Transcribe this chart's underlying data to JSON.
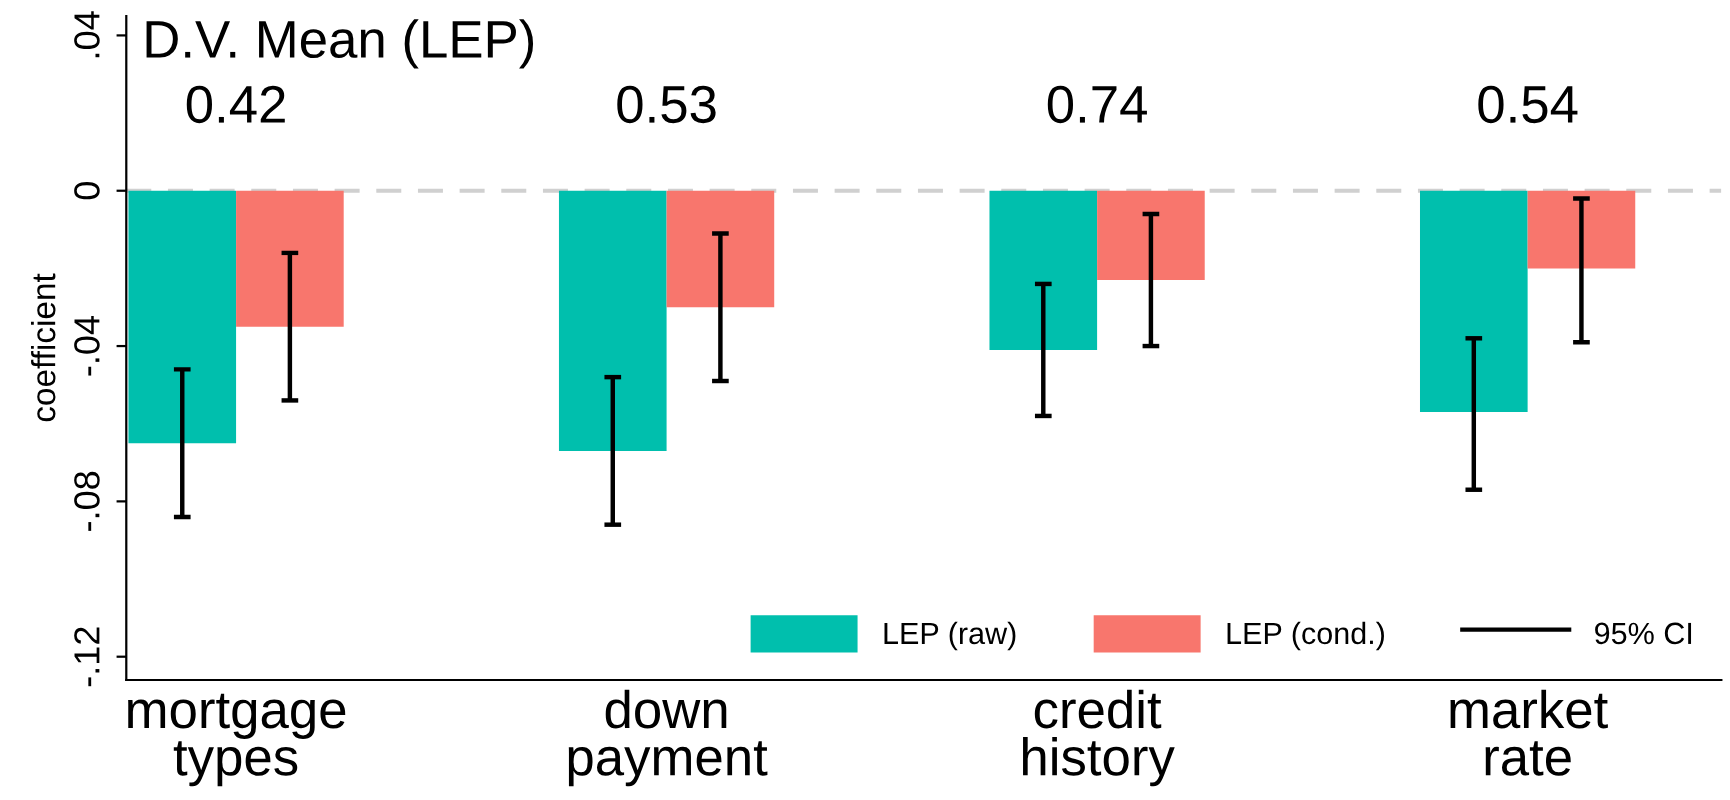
{
  "chart_data": {
    "type": "bar",
    "title": "D.V. Mean (LEP)",
    "ylabel": "coefficient",
    "categories": [
      "mortgage\ntypes",
      "down\npayment",
      "credit\nhistory",
      "market\nrate"
    ],
    "series": [
      {
        "name": "LEP (raw)",
        "color": "#00bfad",
        "values": [
          -0.065,
          -0.067,
          -0.041,
          -0.057
        ],
        "errors": [
          [
            -0.084,
            -0.046
          ],
          [
            -0.086,
            -0.048
          ],
          [
            -0.058,
            -0.024
          ],
          [
            -0.077,
            -0.038
          ]
        ]
      },
      {
        "name": "LEP (cond.)",
        "color": "#f8766d",
        "values": [
          -0.035,
          -0.03,
          -0.023,
          -0.02
        ],
        "errors": [
          [
            -0.054,
            -0.016
          ],
          [
            -0.049,
            -0.011
          ],
          [
            -0.04,
            -0.006
          ],
          [
            -0.039,
            -0.002
          ]
        ]
      }
    ],
    "annotations": [
      "0.42",
      "0.53",
      "0.74",
      "0.54",
      "95% CI"
    ],
    "ylim": [
      -0.126,
      0.045
    ],
    "yticks": [
      {
        "value": -0.12,
        "label": "-.12"
      },
      {
        "value": -0.08,
        "label": "-.08"
      },
      {
        "value": -0.04,
        "label": "-.04"
      },
      0,
      {
        "value": 0.04,
        "label": ".04"
      }
    ],
    "ref_lines": [
      {
        "axis": "y",
        "value": 0,
        "label": null,
        "color": "#d0d0d0",
        "line_style": "dashed"
      }
    ],
    "grid": false,
    "legend": "bottom right"
  }
}
